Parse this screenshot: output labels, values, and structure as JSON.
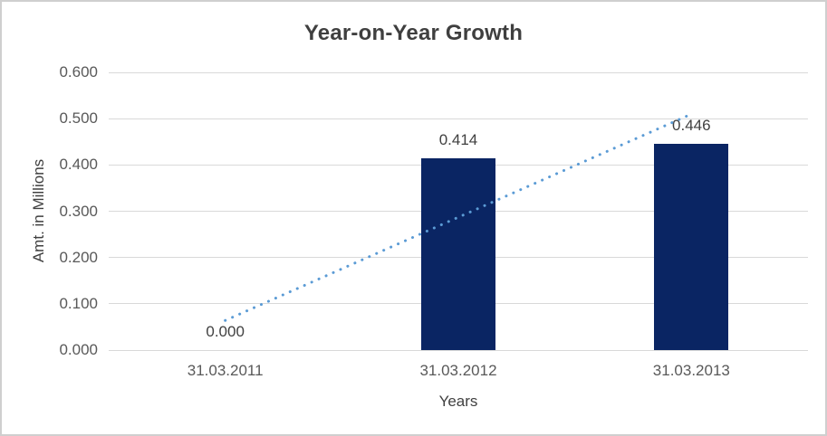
{
  "chart_data": {
    "type": "bar",
    "title": "Year-on-Year Growth",
    "xlabel": "Years",
    "ylabel": "Amt. in Millions",
    "categories": [
      "31.03.2011",
      "31.03.2012",
      "31.03.2013"
    ],
    "values": [
      0,
      0.414,
      0.446
    ],
    "data_labels": [
      "0.000",
      "0.414",
      "0.446"
    ],
    "ylim": [
      0,
      0.6
    ],
    "ytick_step": 0.1,
    "ytick_labels": [
      "0.000",
      "0.100",
      "0.200",
      "0.300",
      "0.400",
      "0.500",
      "0.600"
    ],
    "grid": true,
    "legend": false,
    "bar_color": "#0a2563",
    "trendline": {
      "type": "linear",
      "style": "dotted",
      "color": "#5b9bd5",
      "start_value": 0.064,
      "end_value": 0.51
    }
  },
  "colors": {
    "background": "#ffffff",
    "frame_border": "#cfcfcf",
    "gridline": "#d9d9d9",
    "axis_text": "#595959",
    "title_text": "#3f3f3f"
  }
}
